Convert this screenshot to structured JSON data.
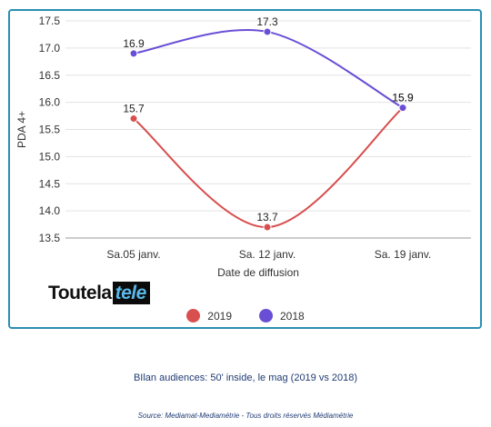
{
  "chart_data": {
    "type": "line",
    "categories": [
      "Sa.05 janv.",
      "Sa. 12 janv.",
      "Sa. 19 janv."
    ],
    "series": [
      {
        "name": "2019",
        "values": [
          15.7,
          13.7,
          15.9
        ],
        "color": "#d94f4f"
      },
      {
        "name": "2018",
        "values": [
          16.9,
          17.3,
          15.9
        ],
        "color": "#6a4fd6"
      }
    ],
    "xlabel": "Date de diffusion",
    "ylabel": "PDA 4+",
    "ylim": [
      13.5,
      17.5
    ],
    "yticks": [
      "13.5",
      "14.0",
      "14.5",
      "15.0",
      "15.5",
      "16.0",
      "16.5",
      "17.0",
      "17.5"
    ],
    "grid": true,
    "legend_position": "bottom"
  },
  "logo": {
    "part1": "Toutela",
    "part2": "tele"
  },
  "caption": "BIlan audiences: 50' inside, le mag (2019 vs 2018)",
  "source": "Source: Mediamat-Mediamétrie - Tous droits réservés Médiamétrie",
  "colors": {
    "border": "#2a8fb0",
    "grid": "#e3e3e3"
  }
}
